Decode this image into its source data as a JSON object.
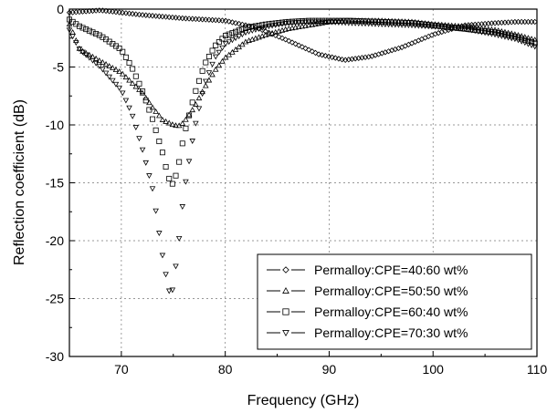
{
  "chart_data": {
    "type": "scatter",
    "xlabel": "Frequency (GHz)",
    "ylabel": "Reflection  coefficient (dB)",
    "xlim": [
      65,
      110
    ],
    "ylim": [
      -30,
      0
    ],
    "x_ticks": [
      70,
      80,
      90,
      100,
      110
    ],
    "y_ticks": [
      0,
      -5,
      -10,
      -15,
      -20,
      -25,
      -30
    ],
    "grid": true,
    "legend_position": "bottom-right",
    "series": [
      {
        "name": "Permalloy:CPE=40:60 wt%",
        "marker": "diamond",
        "x": [
          65,
          68,
          72,
          76,
          80,
          83,
          86,
          89,
          91.5,
          94,
          97,
          100,
          103,
          106,
          108,
          110
        ],
        "y": [
          -0.3,
          -0.1,
          -0.5,
          -0.8,
          -1.0,
          -1.6,
          -2.7,
          -3.9,
          -4.4,
          -4.1,
          -3.3,
          -2.2,
          -1.4,
          -1.2,
          -1.1,
          -1.1
        ]
      },
      {
        "name": "Permalloy:CPE=50:50 wt%",
        "marker": "triangle-up",
        "x": [
          65,
          66,
          68,
          70,
          72,
          73,
          74,
          75,
          75.5,
          76,
          77,
          78,
          79,
          80,
          82,
          84,
          86,
          88,
          90,
          92,
          95,
          98,
          100,
          103,
          106,
          108,
          110
        ],
        "y": [
          -1.3,
          -3.5,
          -4.5,
          -5.5,
          -7.2,
          -8.5,
          -9.6,
          -10.0,
          -10.1,
          -9.8,
          -8.5,
          -6.8,
          -5.3,
          -4.2,
          -2.8,
          -2.2,
          -1.7,
          -1.4,
          -1.1,
          -1.0,
          -1.0,
          -1.1,
          -1.3,
          -1.5,
          -1.8,
          -2.2,
          -2.7
        ]
      },
      {
        "name": "Permalloy:CPE=60:40 wt%",
        "marker": "square",
        "x": [
          65,
          66,
          68,
          70,
          71,
          72,
          73,
          74,
          74.5,
          75,
          75.5,
          76,
          77,
          78,
          79,
          80,
          82,
          84,
          86,
          88,
          90,
          92,
          95,
          98,
          100,
          103,
          106,
          108,
          110
        ],
        "y": [
          -0.9,
          -1.5,
          -2.3,
          -3.5,
          -5.0,
          -7.0,
          -9.5,
          -12.5,
          -14.5,
          -15.2,
          -13.5,
          -11.0,
          -7.5,
          -4.8,
          -3.2,
          -2.3,
          -1.6,
          -1.3,
          -1.1,
          -1.0,
          -1.0,
          -1.0,
          -1.1,
          -1.2,
          -1.4,
          -1.7,
          -2.0,
          -2.4,
          -3.0
        ]
      },
      {
        "name": "Permalloy:CPE=70:30 wt%",
        "marker": "triangle-down",
        "x": [
          65,
          66,
          68,
          70,
          71,
          72,
          73,
          73.5,
          74,
          74.5,
          74.8,
          75.2,
          75.6,
          76,
          77,
          78,
          79,
          80,
          82,
          84,
          86,
          88,
          90,
          92,
          95,
          98,
          100,
          103,
          106,
          108,
          110
        ],
        "y": [
          -1.8,
          -3.5,
          -5.0,
          -7.0,
          -9.0,
          -12.0,
          -15.5,
          -18.5,
          -21.5,
          -24.0,
          -25.0,
          -22.5,
          -19.5,
          -16.0,
          -10.5,
          -6.5,
          -4.2,
          -3.0,
          -2.0,
          -1.5,
          -1.2,
          -1.1,
          -1.1,
          -1.2,
          -1.3,
          -1.4,
          -1.5,
          -1.7,
          -2.2,
          -2.6,
          -3.3
        ]
      }
    ]
  }
}
